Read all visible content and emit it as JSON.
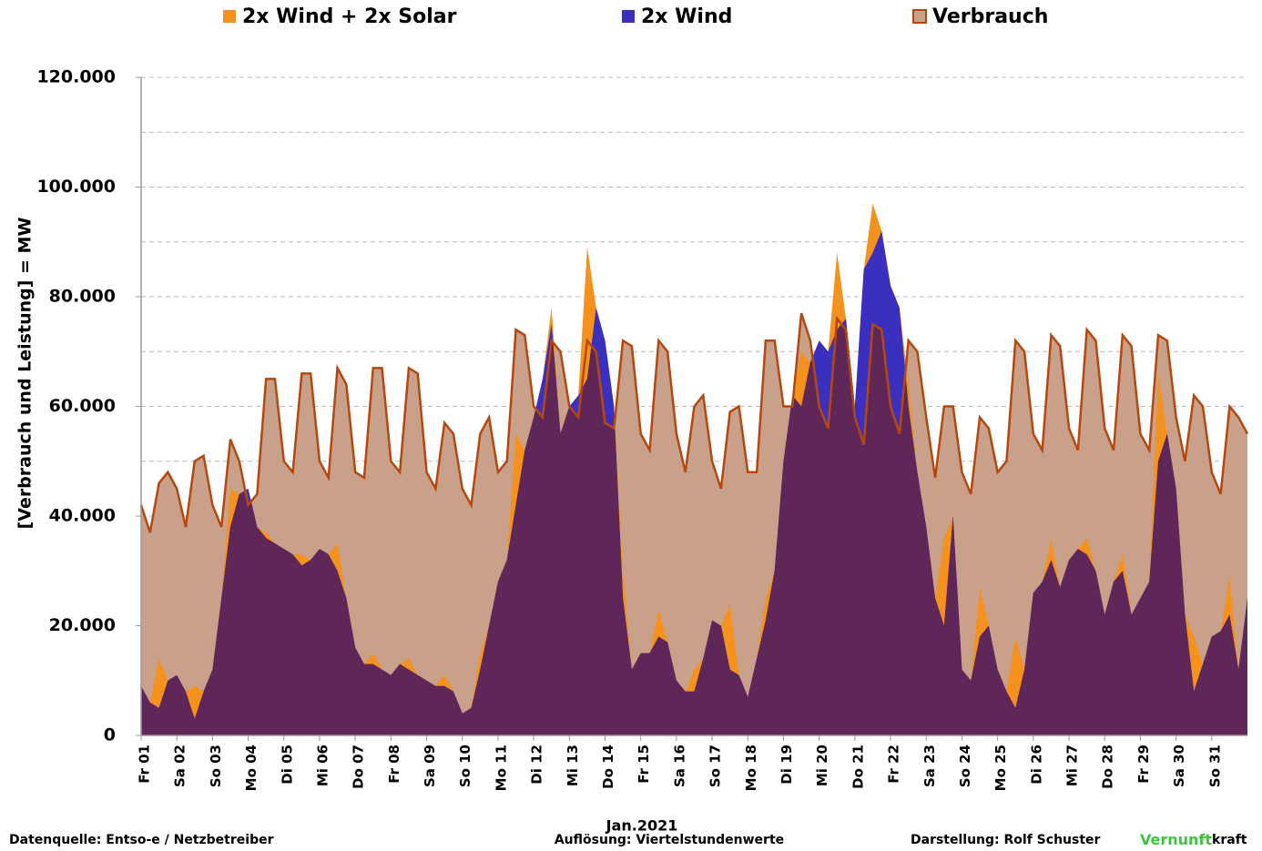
{
  "chart_data": {
    "type": "area",
    "y_label": "[Verbrauch und Leistung] = MW",
    "x_label": "Jan.2021",
    "source": "Datenquelle: Entso-e  / Netzbetreiber",
    "resolution": "Auflösung: Viertelstundenwerte",
    "author": "Darstellung:  Rolf Schuster",
    "brand": [
      "Vernunft",
      "kraft"
    ],
    "brand_colors": [
      "#3cc43c",
      "#000000"
    ],
    "overlap_color": "#5f2757",
    "edge_color": "#b5480e",
    "grid": true,
    "legend": "top",
    "xlim": [
      1,
      32
    ],
    "ylim": [
      0,
      120000
    ],
    "yticks": [
      {
        "value": 0,
        "label": "0"
      },
      {
        "value": 20000,
        "label": "20.000"
      },
      {
        "value": 40000,
        "label": "40.000"
      },
      {
        "value": 60000,
        "label": "60.000"
      },
      {
        "value": 80000,
        "label": "80.000"
      },
      {
        "value": 100000,
        "label": "100.000"
      },
      {
        "value": 120000,
        "label": "120.000"
      }
    ],
    "minor_yticks": [
      10000,
      30000,
      50000,
      70000,
      90000,
      110000
    ],
    "xticks": [
      {
        "value": 1,
        "label": "Fr 01"
      },
      {
        "value": 2,
        "label": "Sa 02"
      },
      {
        "value": 3,
        "label": "So 03"
      },
      {
        "value": 4,
        "label": "Mo 04"
      },
      {
        "value": 5,
        "label": "Di 05"
      },
      {
        "value": 6,
        "label": "Mi 06"
      },
      {
        "value": 7,
        "label": "Do 07"
      },
      {
        "value": 8,
        "label": "Fr 08"
      },
      {
        "value": 9,
        "label": "Sa 09"
      },
      {
        "value": 10,
        "label": "So 10"
      },
      {
        "value": 11,
        "label": "Mo 11"
      },
      {
        "value": 12,
        "label": "Di 12"
      },
      {
        "value": 13,
        "label": "Mi 13"
      },
      {
        "value": 14,
        "label": "Do 14"
      },
      {
        "value": 15,
        "label": "Fr 15"
      },
      {
        "value": 16,
        "label": "Sa 16"
      },
      {
        "value": 17,
        "label": "So 17"
      },
      {
        "value": 18,
        "label": "Mo 18"
      },
      {
        "value": 19,
        "label": "Di 19"
      },
      {
        "value": 20,
        "label": "Mi 20"
      },
      {
        "value": 21,
        "label": "Do 21"
      },
      {
        "value": 22,
        "label": "Fr 22"
      },
      {
        "value": 23,
        "label": "Sa 23"
      },
      {
        "value": 24,
        "label": "So 24"
      },
      {
        "value": 25,
        "label": "Mo 25"
      },
      {
        "value": 26,
        "label": "Di 26"
      },
      {
        "value": 27,
        "label": "Mi 27"
      },
      {
        "value": 28,
        "label": "Do 28"
      },
      {
        "value": 29,
        "label": "Fr 29"
      },
      {
        "value": 30,
        "label": "Sa 30"
      },
      {
        "value": 31,
        "label": "So 31"
      }
    ],
    "x": [
      1,
      1.25,
      1.5,
      1.75,
      2,
      2.25,
      2.5,
      2.75,
      3,
      3.25,
      3.5,
      3.75,
      4,
      4.25,
      4.5,
      4.75,
      5,
      5.25,
      5.5,
      5.75,
      6,
      6.25,
      6.5,
      6.75,
      7,
      7.25,
      7.5,
      7.75,
      8,
      8.25,
      8.5,
      8.75,
      9,
      9.25,
      9.5,
      9.75,
      10,
      10.25,
      10.5,
      10.75,
      11,
      11.25,
      11.5,
      11.75,
      12,
      12.25,
      12.5,
      12.75,
      13,
      13.25,
      13.5,
      13.75,
      14,
      14.25,
      14.5,
      14.75,
      15,
      15.25,
      15.5,
      15.75,
      16,
      16.25,
      16.5,
      16.75,
      17,
      17.25,
      17.5,
      17.75,
      18,
      18.25,
      18.5,
      18.75,
      19,
      19.25,
      19.5,
      19.75,
      20,
      20.25,
      20.5,
      20.75,
      21,
      21.25,
      21.5,
      21.75,
      22,
      22.25,
      22.5,
      22.75,
      23,
      23.25,
      23.5,
      23.75,
      24,
      24.25,
      24.5,
      24.75,
      25,
      25.25,
      25.5,
      25.75,
      26,
      26.25,
      26.5,
      26.75,
      27,
      27.25,
      27.5,
      27.75,
      28,
      28.25,
      28.5,
      28.75,
      29,
      29.25,
      29.5,
      29.75,
      30,
      30.25,
      30.5,
      30.75,
      31,
      31.25,
      31.5,
      31.75,
      32
    ],
    "series": [
      {
        "name": "2x Wind + 2x Solar",
        "color": "#f5921e",
        "values": [
          9000,
          6000,
          14000,
          10000,
          11000,
          8000,
          9000,
          8000,
          12000,
          25000,
          45000,
          44000,
          45000,
          38000,
          37000,
          35000,
          34000,
          33000,
          33000,
          32000,
          34000,
          33000,
          35000,
          25000,
          16000,
          13000,
          15000,
          12000,
          11000,
          13000,
          14000,
          11000,
          10000,
          9000,
          11000,
          8000,
          4000,
          5000,
          15000,
          20000,
          28000,
          32000,
          55000,
          52000,
          58000,
          65000,
          78000,
          55000,
          60000,
          62000,
          89000,
          78000,
          72000,
          60000,
          30000,
          12000,
          15000,
          15000,
          23000,
          17000,
          10000,
          8000,
          12000,
          14000,
          21000,
          20000,
          24000,
          11000,
          7000,
          14000,
          25000,
          30000,
          50000,
          62000,
          70000,
          68000,
          72000,
          70000,
          88000,
          76000,
          60000,
          85000,
          97000,
          92000,
          82000,
          78000,
          64000,
          48000,
          38000,
          25000,
          36000,
          40000,
          12000,
          10000,
          27000,
          20000,
          12000,
          8000,
          18000,
          12000,
          26000,
          28000,
          36000,
          27000,
          32000,
          34000,
          36000,
          30000,
          22000,
          28000,
          33000,
          22000,
          25000,
          28000,
          66000,
          55000,
          45000,
          22000,
          18000,
          13000,
          18000,
          19000,
          29000,
          12000,
          25000
        ]
      },
      {
        "name": "2x Wind",
        "color": "#3a2fbf",
        "values": [
          9000,
          6000,
          5000,
          10000,
          11000,
          8000,
          3000,
          8000,
          12000,
          25000,
          38000,
          44000,
          45000,
          38000,
          36000,
          35000,
          34000,
          33000,
          31000,
          32000,
          34000,
          33000,
          30000,
          25000,
          16000,
          13000,
          13000,
          12000,
          11000,
          13000,
          12000,
          11000,
          10000,
          9000,
          9000,
          8000,
          4000,
          5000,
          12000,
          20000,
          28000,
          32000,
          42000,
          52000,
          58000,
          65000,
          75000,
          55000,
          60000,
          62000,
          65000,
          78000,
          72000,
          60000,
          25000,
          12000,
          15000,
          15000,
          18000,
          17000,
          10000,
          8000,
          8000,
          14000,
          21000,
          20000,
          12000,
          11000,
          7000,
          14000,
          21000,
          30000,
          50000,
          62000,
          60000,
          68000,
          72000,
          70000,
          74000,
          76000,
          60000,
          85000,
          88000,
          92000,
          82000,
          78000,
          60000,
          48000,
          38000,
          25000,
          20000,
          40000,
          12000,
          10000,
          18000,
          20000,
          12000,
          8000,
          5000,
          12000,
          26000,
          28000,
          32000,
          27000,
          32000,
          34000,
          33000,
          30000,
          22000,
          28000,
          30000,
          22000,
          25000,
          28000,
          50000,
          55000,
          45000,
          22000,
          8000,
          13000,
          18000,
          19000,
          22000,
          12000,
          25000
        ]
      },
      {
        "name": "Verbrauch",
        "color": "#c9a08a",
        "values": [
          42000,
          37000,
          46000,
          48000,
          45000,
          38000,
          50000,
          51000,
          42000,
          38000,
          54000,
          50000,
          42000,
          44000,
          65000,
          65000,
          50000,
          48000,
          66000,
          66000,
          50000,
          47000,
          67000,
          64000,
          48000,
          47000,
          67000,
          67000,
          50000,
          48000,
          67000,
          66000,
          48000,
          45000,
          57000,
          55000,
          45000,
          42000,
          55000,
          58000,
          48000,
          50000,
          74000,
          73000,
          60000,
          58000,
          72000,
          70000,
          60000,
          58000,
          72000,
          70000,
          57000,
          56000,
          72000,
          71000,
          55000,
          52000,
          72000,
          70000,
          55000,
          48000,
          60000,
          62000,
          50000,
          45000,
          59000,
          60000,
          48000,
          48000,
          72000,
          72000,
          60000,
          60000,
          77000,
          72000,
          60000,
          56000,
          76000,
          74000,
          58000,
          53000,
          75000,
          74000,
          60000,
          55000,
          72000,
          70000,
          58000,
          47000,
          60000,
          60000,
          48000,
          44000,
          58000,
          56000,
          48000,
          50000,
          72000,
          70000,
          55000,
          52000,
          73000,
          71000,
          56000,
          52000,
          74000,
          72000,
          56000,
          52000,
          73000,
          71000,
          55000,
          52000,
          73000,
          72000,
          58000,
          50000,
          62000,
          60000,
          48000,
          44000,
          60000,
          58000,
          55000
        ]
      }
    ]
  }
}
